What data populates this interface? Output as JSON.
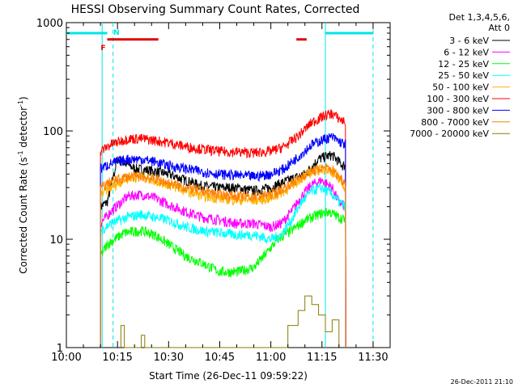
{
  "chart_data": {
    "type": "line",
    "title": "HESSI Observing Summary Count Rates, Corrected",
    "xlabel": "Start Time (26-Dec-11 09:59:22)",
    "ylabel_main": "Corrected Count Rate (s",
    "ylabel_sup1": "-1",
    "ylabel_mid": " detector",
    "ylabel_sup2": "-1",
    "ylabel_end": ")",
    "y_scale": "log",
    "ylim": [
      1,
      1000
    ],
    "xlim_minutes_after_1000": [
      0,
      95
    ],
    "x_ticks": [
      {
        "label": "10:00",
        "t": 0
      },
      {
        "label": "10:15",
        "t": 15
      },
      {
        "label": "10:30",
        "t": 30
      },
      {
        "label": "10:45",
        "t": 45
      },
      {
        "label": "11:00",
        "t": 60
      },
      {
        "label": "11:15",
        "t": 75
      },
      {
        "label": "11:30",
        "t": 90
      }
    ],
    "y_ticks": [
      {
        "label": "1",
        "v": 1
      },
      {
        "label": "10",
        "v": 10
      },
      {
        "label": "100",
        "v": 100
      },
      {
        "label": "1000",
        "v": 1000
      }
    ],
    "legend_header": [
      "Det 1,3,4,5,6,",
      "Att 0"
    ],
    "legend_position": "right",
    "series": [
      {
        "name": "3 - 6 keV",
        "color": "#000000",
        "points": [
          [
            10,
            0.1
          ],
          [
            10,
            20
          ],
          [
            12,
            22
          ],
          [
            15,
            55
          ],
          [
            20,
            45
          ],
          [
            25,
            43
          ],
          [
            30,
            40
          ],
          [
            35,
            35
          ],
          [
            40,
            31
          ],
          [
            45,
            30
          ],
          [
            50,
            30
          ],
          [
            55,
            28
          ],
          [
            60,
            30
          ],
          [
            65,
            35
          ],
          [
            70,
            40
          ],
          [
            74,
            55
          ],
          [
            76,
            58
          ],
          [
            78,
            60
          ],
          [
            80,
            52
          ],
          [
            81,
            48
          ],
          [
            82,
            48
          ],
          [
            82,
            0.1
          ]
        ]
      },
      {
        "name": "6 - 12 keV",
        "color": "#ff00ff",
        "points": [
          [
            10,
            0.1
          ],
          [
            10,
            14
          ],
          [
            13,
            18
          ],
          [
            18,
            25
          ],
          [
            22,
            26
          ],
          [
            26,
            24
          ],
          [
            30,
            21
          ],
          [
            35,
            18
          ],
          [
            40,
            16
          ],
          [
            45,
            15
          ],
          [
            50,
            14
          ],
          [
            55,
            14
          ],
          [
            60,
            13
          ],
          [
            63,
            14
          ],
          [
            66,
            18
          ],
          [
            69,
            25
          ],
          [
            72,
            32
          ],
          [
            75,
            35
          ],
          [
            78,
            30
          ],
          [
            80,
            22
          ],
          [
            82,
            20
          ],
          [
            82,
            0.1
          ]
        ]
      },
      {
        "name": "12 - 25 keV",
        "color": "#00ff00",
        "points": [
          [
            10,
            0.1
          ],
          [
            10,
            7
          ],
          [
            12,
            9
          ],
          [
            17,
            11.5
          ],
          [
            22,
            12
          ],
          [
            26,
            11
          ],
          [
            30,
            9
          ],
          [
            35,
            7
          ],
          [
            40,
            6
          ],
          [
            45,
            5
          ],
          [
            50,
            5
          ],
          [
            55,
            5.5
          ],
          [
            58,
            7
          ],
          [
            62,
            10
          ],
          [
            66,
            12
          ],
          [
            70,
            15
          ],
          [
            74,
            17
          ],
          [
            77,
            18
          ],
          [
            80,
            16
          ],
          [
            82,
            15
          ],
          [
            82,
            0.1
          ]
        ]
      },
      {
        "name": "25 - 50 keV",
        "color": "#00ffff",
        "points": [
          [
            10,
            0.1
          ],
          [
            10,
            12
          ],
          [
            13,
            14
          ],
          [
            18,
            16
          ],
          [
            22,
            17
          ],
          [
            26,
            16
          ],
          [
            30,
            15
          ],
          [
            35,
            13
          ],
          [
            40,
            12
          ],
          [
            45,
            11.5
          ],
          [
            50,
            11
          ],
          [
            55,
            11
          ],
          [
            60,
            10
          ],
          [
            63,
            11
          ],
          [
            66,
            15
          ],
          [
            69,
            22
          ],
          [
            72,
            28
          ],
          [
            75,
            30
          ],
          [
            78,
            26
          ],
          [
            80,
            22
          ],
          [
            82,
            20
          ],
          [
            82,
            0.1
          ]
        ]
      },
      {
        "name": "50 - 100 keV",
        "color": "#ffb000",
        "points": [
          [
            10,
            0.1
          ],
          [
            10,
            26
          ],
          [
            13,
            30
          ],
          [
            18,
            37
          ],
          [
            22,
            38
          ],
          [
            26,
            35
          ],
          [
            30,
            32
          ],
          [
            35,
            28
          ],
          [
            40,
            25
          ],
          [
            45,
            24
          ],
          [
            50,
            23
          ],
          [
            55,
            23
          ],
          [
            60,
            24
          ],
          [
            64,
            28
          ],
          [
            68,
            35
          ],
          [
            72,
            42
          ],
          [
            76,
            45
          ],
          [
            78,
            42
          ],
          [
            80,
            35
          ],
          [
            82,
            30
          ],
          [
            82,
            0.1
          ]
        ]
      },
      {
        "name": "100 - 300 keV",
        "color": "#ff0000",
        "points": [
          [
            10,
            0.1
          ],
          [
            10,
            65
          ],
          [
            13,
            75
          ],
          [
            18,
            85
          ],
          [
            22,
            85
          ],
          [
            26,
            82
          ],
          [
            30,
            78
          ],
          [
            35,
            72
          ],
          [
            40,
            68
          ],
          [
            45,
            65
          ],
          [
            50,
            64
          ],
          [
            55,
            63
          ],
          [
            60,
            65
          ],
          [
            64,
            72
          ],
          [
            68,
            90
          ],
          [
            72,
            120
          ],
          [
            76,
            140
          ],
          [
            78,
            145
          ],
          [
            80,
            130
          ],
          [
            82,
            120
          ],
          [
            82,
            0.1
          ]
        ]
      },
      {
        "name": "300 - 800 keV",
        "color": "#0000ff",
        "points": [
          [
            10,
            0.1
          ],
          [
            10,
            45
          ],
          [
            13,
            50
          ],
          [
            18,
            55
          ],
          [
            22,
            55
          ],
          [
            26,
            52
          ],
          [
            30,
            48
          ],
          [
            35,
            45
          ],
          [
            40,
            42
          ],
          [
            45,
            40
          ],
          [
            50,
            39
          ],
          [
            55,
            38
          ],
          [
            60,
            40
          ],
          [
            64,
            45
          ],
          [
            68,
            58
          ],
          [
            72,
            75
          ],
          [
            76,
            85
          ],
          [
            78,
            88
          ],
          [
            80,
            80
          ],
          [
            82,
            75
          ],
          [
            82,
            0.1
          ]
        ]
      },
      {
        "name": "800 - 7000 keV",
        "color": "#ff7f00",
        "points": [
          [
            10,
            0.1
          ],
          [
            10,
            30
          ],
          [
            13,
            34
          ],
          [
            18,
            38
          ],
          [
            22,
            38
          ],
          [
            26,
            36
          ],
          [
            30,
            33
          ],
          [
            35,
            30
          ],
          [
            40,
            28
          ],
          [
            45,
            26
          ],
          [
            50,
            25
          ],
          [
            55,
            25
          ],
          [
            60,
            26
          ],
          [
            64,
            30
          ],
          [
            68,
            36
          ],
          [
            72,
            43
          ],
          [
            76,
            46
          ],
          [
            78,
            44
          ],
          [
            80,
            38
          ],
          [
            82,
            33
          ],
          [
            82,
            0.1
          ]
        ]
      },
      {
        "name": "7000 - 20000 keV",
        "color": "#8b7a00",
        "points": [
          [
            16,
            0.1
          ],
          [
            16,
            1.6
          ],
          [
            17,
            1.6
          ],
          [
            17,
            0.1
          ],
          [
            22,
            0.1
          ],
          [
            22,
            1.3
          ],
          [
            23,
            1.3
          ],
          [
            23,
            0.1
          ],
          [
            65,
            0.1
          ],
          [
            65,
            1.6
          ],
          [
            68,
            1.6
          ],
          [
            68,
            2.2
          ],
          [
            70,
            2.2
          ],
          [
            70,
            3
          ],
          [
            72,
            3
          ],
          [
            72,
            2.5
          ],
          [
            74,
            2.5
          ],
          [
            74,
            2
          ],
          [
            76,
            2
          ],
          [
            76,
            1.4
          ],
          [
            78,
            1.4
          ],
          [
            78,
            1.8
          ],
          [
            80,
            1.8
          ],
          [
            80,
            0.1
          ]
        ]
      }
    ],
    "flag_N": {
      "label": "N",
      "color": "#00e5e5",
      "intervals": [
        [
          0,
          12
        ],
        [
          76,
          90
        ]
      ],
      "level": 800
    },
    "flag_F": {
      "label": "F",
      "color": "#e00000",
      "intervals": [
        [
          12,
          27
        ],
        [
          67.5,
          70.5
        ]
      ],
      "level": 700
    },
    "vertical_lines": [
      {
        "t": 10.5,
        "style": "solid",
        "color": "#00e5e5"
      },
      {
        "t": 13.7,
        "style": "dashed",
        "color": "#00e5e5"
      },
      {
        "t": 76,
        "style": "solid",
        "color": "#00e5e5"
      },
      {
        "t": 90,
        "style": "dashed",
        "color": "#00e5e5"
      }
    ],
    "footer_timestamp": "26-Dec-2011 21:10"
  }
}
